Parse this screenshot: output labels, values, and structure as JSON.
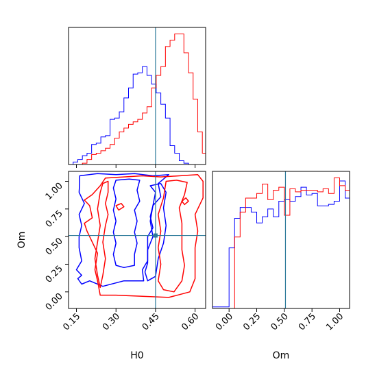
{
  "chart_data": [
    {
      "type": "histogram",
      "panel": "H0 marginal",
      "x_range": [
        0.12,
        0.64
      ],
      "truth_line": 0.45,
      "series": [
        {
          "color": "#0000ff",
          "edges_start": 0.12,
          "bin_width": 0.0175,
          "values": [
            0,
            2,
            4,
            7,
            9,
            16,
            17,
            22,
            23,
            36,
            37,
            42,
            53,
            61,
            72,
            73,
            78,
            71,
            64,
            57,
            48,
            37,
            15,
            9,
            3,
            1,
            0,
            0,
            0,
            0
          ]
        },
        {
          "color": "#ff0000",
          "edges_start": 0.12,
          "bin_width": 0.0175,
          "values": [
            0,
            0,
            0,
            1,
            4,
            8,
            9,
            11,
            13,
            16,
            21,
            26,
            29,
            32,
            34,
            36,
            41,
            46,
            61,
            71,
            78,
            94,
            99,
            104,
            104,
            89,
            73,
            52,
            26,
            9
          ]
        }
      ]
    },
    {
      "type": "contour",
      "panel": "H0 vs Om",
      "x_range": [
        0.12,
        0.64
      ],
      "y_range": [
        -0.15,
        1.09
      ],
      "truth": [
        0.45,
        0.51
      ],
      "xlabel": "H0",
      "ylabel": "Om",
      "xticks": [
        "0.15",
        "0.30",
        "0.45",
        "0.60"
      ],
      "yticks": [
        "0.00",
        "0.25",
        "0.50",
        "0.75",
        "1.00"
      ],
      "series": [
        {
          "color": "#0000ff",
          "level": "outer",
          "points": [
            [
              0.162,
              1.05
            ],
            [
              0.23,
              1.07
            ],
            [
              0.3,
              1.06
            ],
            [
              0.37,
              1.07
            ],
            [
              0.44,
              1.05
            ],
            [
              0.5,
              1.06
            ],
            [
              0.46,
              0.98
            ],
            [
              0.47,
              0.86
            ],
            [
              0.44,
              0.78
            ],
            [
              0.43,
              0.68
            ],
            [
              0.44,
              0.58
            ],
            [
              0.42,
              0.5
            ],
            [
              0.42,
              0.4
            ],
            [
              0.42,
              0.28
            ],
            [
              0.4,
              0.2
            ],
            [
              0.405,
              0.1
            ],
            [
              0.33,
              0.1
            ],
            [
              0.25,
              0.05
            ],
            [
              0.2,
              0.1
            ],
            [
              0.17,
              0.07
            ],
            [
              0.155,
              0.12
            ],
            [
              0.17,
              0.15
            ],
            [
              0.15,
              0.2
            ],
            [
              0.17,
              0.28
            ],
            [
              0.16,
              0.4
            ],
            [
              0.16,
              0.5
            ],
            [
              0.17,
              0.6
            ],
            [
              0.16,
              0.7
            ],
            [
              0.18,
              0.8
            ],
            [
              0.16,
              0.9
            ],
            [
              0.162,
              0.98
            ]
          ]
        },
        {
          "color": "#0000ff",
          "level": "inner",
          "points": [
            [
              0.3,
              1.01
            ],
            [
              0.35,
              1.02
            ],
            [
              0.39,
              1.01
            ],
            [
              0.38,
              0.92
            ],
            [
              0.39,
              0.82
            ],
            [
              0.37,
              0.74
            ],
            [
              0.38,
              0.64
            ],
            [
              0.37,
              0.54
            ],
            [
              0.38,
              0.44
            ],
            [
              0.37,
              0.34
            ],
            [
              0.37,
              0.24
            ],
            [
              0.33,
              0.22
            ],
            [
              0.3,
              0.24
            ],
            [
              0.29,
              0.34
            ],
            [
              0.3,
              0.44
            ],
            [
              0.29,
              0.54
            ],
            [
              0.3,
              0.64
            ],
            [
              0.29,
              0.74
            ],
            [
              0.3,
              0.84
            ],
            [
              0.29,
              0.94
            ]
          ]
        },
        {
          "color": "#0000ff",
          "level": "contour",
          "points": [
            [
              0.43,
              0.96
            ],
            [
              0.45,
              0.9
            ],
            [
              0.44,
              0.78
            ],
            [
              0.43,
              0.64
            ],
            [
              0.44,
              0.5
            ],
            [
              0.42,
              0.38
            ],
            [
              0.42,
              0.26
            ],
            [
              0.41,
              0.18
            ],
            [
              0.42,
              0.1
            ],
            [
              0.45,
              0.14
            ],
            [
              0.46,
              0.3
            ],
            [
              0.48,
              0.44
            ],
            [
              0.49,
              0.6
            ],
            [
              0.48,
              0.76
            ],
            [
              0.49,
              0.9
            ],
            [
              0.47,
              0.98
            ]
          ]
        },
        {
          "color": "#ff0000",
          "level": "outer",
          "points": [
            [
              0.26,
              1.03
            ],
            [
              0.33,
              1.04
            ],
            [
              0.4,
              1.05
            ],
            [
              0.47,
              1.04
            ],
            [
              0.54,
              1.05
            ],
            [
              0.61,
              1.06
            ],
            [
              0.63,
              1.0
            ],
            [
              0.63,
              0.85
            ],
            [
              0.6,
              0.7
            ],
            [
              0.61,
              0.55
            ],
            [
              0.6,
              0.4
            ],
            [
              0.6,
              0.25
            ],
            [
              0.6,
              0.12
            ],
            [
              0.58,
              0.0
            ],
            [
              0.5,
              -0.05
            ],
            [
              0.4,
              -0.04
            ],
            [
              0.3,
              -0.03
            ],
            [
              0.24,
              -0.03
            ],
            [
              0.23,
              0.1
            ],
            [
              0.22,
              0.2
            ],
            [
              0.23,
              0.35
            ],
            [
              0.21,
              0.45
            ],
            [
              0.19,
              0.55
            ],
            [
              0.18,
              0.62
            ],
            [
              0.21,
              0.67
            ],
            [
              0.2,
              0.78
            ],
            [
              0.18,
              0.83
            ],
            [
              0.21,
              0.88
            ],
            [
              0.24,
              0.96
            ]
          ]
        },
        {
          "color": "#ff0000",
          "level": "inner",
          "points": [
            [
              0.49,
              1.0
            ],
            [
              0.53,
              1.01
            ],
            [
              0.57,
              0.99
            ],
            [
              0.56,
              0.88
            ],
            [
              0.54,
              0.76
            ],
            [
              0.55,
              0.62
            ],
            [
              0.55,
              0.5
            ],
            [
              0.55,
              0.38
            ],
            [
              0.56,
              0.24
            ],
            [
              0.55,
              0.1
            ],
            [
              0.52,
              0.0
            ],
            [
              0.48,
              0.02
            ],
            [
              0.46,
              0.1
            ],
            [
              0.47,
              0.25
            ],
            [
              0.46,
              0.4
            ],
            [
              0.47,
              0.55
            ],
            [
              0.46,
              0.7
            ],
            [
              0.48,
              0.85
            ]
          ]
        },
        {
          "color": "#ff0000",
          "level": "contour",
          "points": [
            [
              0.25,
              0.98
            ],
            [
              0.27,
              1.0
            ],
            [
              0.27,
              0.9
            ],
            [
              0.26,
              0.8
            ],
            [
              0.27,
              0.7
            ],
            [
              0.26,
              0.6
            ],
            [
              0.25,
              0.45
            ],
            [
              0.26,
              0.3
            ],
            [
              0.25,
              0.15
            ],
            [
              0.24,
              0.04
            ],
            [
              0.23,
              0.15
            ],
            [
              0.22,
              0.3
            ],
            [
              0.23,
              0.45
            ],
            [
              0.24,
              0.6
            ],
            [
              0.23,
              0.75
            ],
            [
              0.24,
              0.9
            ]
          ]
        },
        {
          "color": "#ff0000",
          "level": "island",
          "points": [
            [
              0.3,
              0.78
            ],
            [
              0.32,
              0.8
            ],
            [
              0.33,
              0.77
            ],
            [
              0.31,
              0.74
            ]
          ]
        },
        {
          "color": "#ff0000",
          "level": "island",
          "points": [
            [
              0.55,
              0.82
            ],
            [
              0.565,
              0.85
            ],
            [
              0.575,
              0.82
            ],
            [
              0.56,
              0.79
            ]
          ]
        }
      ]
    },
    {
      "type": "histogram",
      "panel": "Om marginal",
      "x_range": [
        -0.15,
        1.09
      ],
      "truth_line": 0.51,
      "xlabel": "Om",
      "xticks": [
        "0.00",
        "0.25",
        "0.50",
        "0.75",
        "1.00"
      ],
      "series": [
        {
          "color": "#0000ff",
          "edges_start": -0.15,
          "bin_width": 0.05,
          "values": [
            1,
            1,
            1,
            39,
            58,
            65,
            65,
            62,
            55,
            59,
            64,
            59,
            69,
            70,
            69,
            72,
            78,
            73,
            74,
            66,
            66,
            67,
            69,
            82,
            71,
            5,
            5
          ]
        },
        {
          "color": "#ff0000",
          "edges_start": -0.15,
          "bin_width": 0.05,
          "values": [
            0,
            0,
            0,
            0,
            46,
            62,
            71,
            71,
            74,
            80,
            70,
            76,
            78,
            60,
            77,
            75,
            76,
            76,
            76,
            75,
            77,
            74,
            84,
            79,
            76,
            0,
            0
          ]
        }
      ]
    }
  ]
}
